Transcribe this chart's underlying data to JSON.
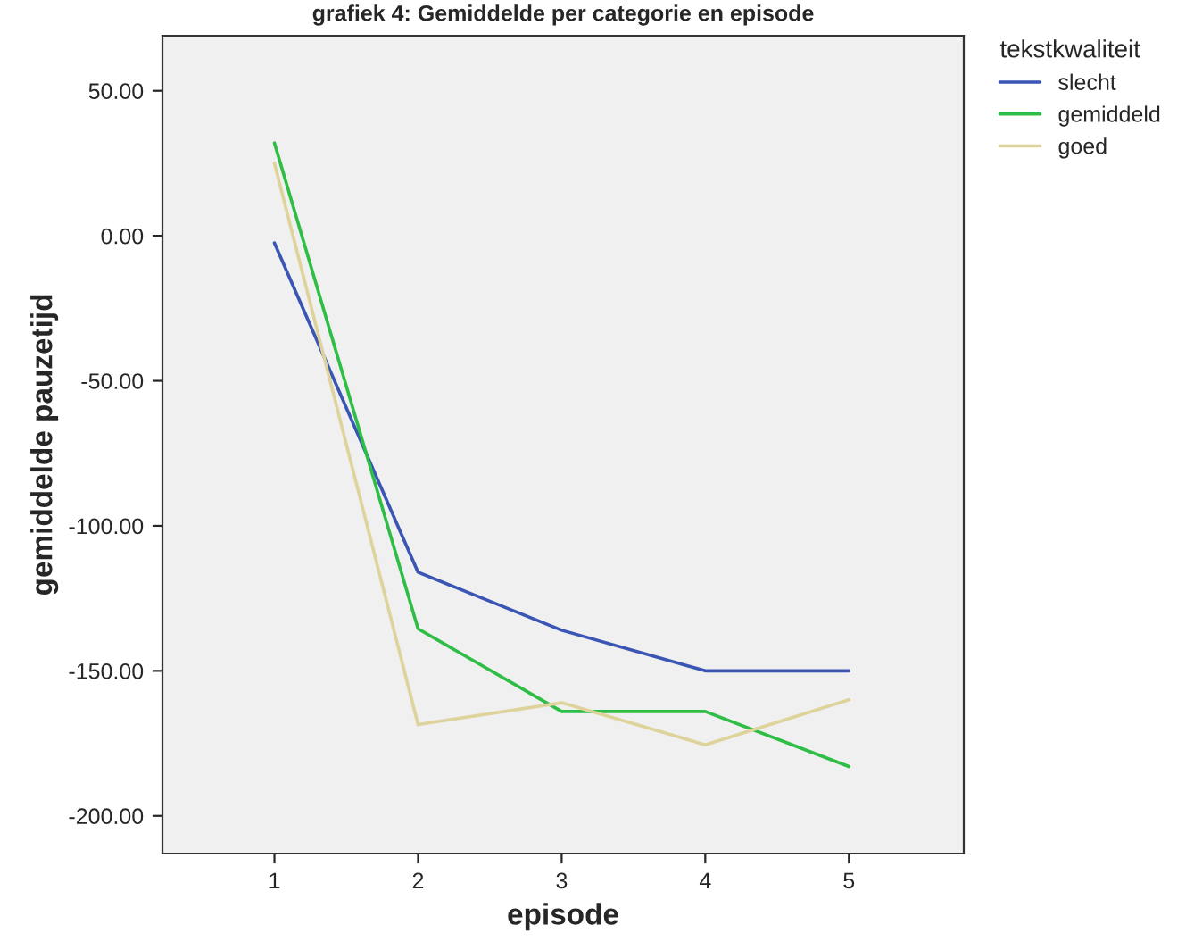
{
  "chart_data": {
    "type": "line",
    "title": "grafiek 4: Gemiddelde per categorie en episode",
    "xlabel": "episode",
    "ylabel": "gemiddelde pauzetijd",
    "legend_title": "tekstkwaliteit",
    "x": [
      1,
      2,
      3,
      4,
      5
    ],
    "series": [
      {
        "name": "slecht",
        "color": "#3a55b4",
        "values": [
          -2.5,
          -116,
          -136,
          -150,
          -150
        ]
      },
      {
        "name": "gemiddeld",
        "color": "#2ebd45",
        "values": [
          32,
          -135.5,
          -164,
          -164,
          -183
        ]
      },
      {
        "name": "goed",
        "color": "#ddd39b",
        "values": [
          25,
          -168.5,
          -161,
          -175.5,
          -160
        ]
      }
    ],
    "xlim": [
      0.22,
      5.8
    ],
    "xticks": [
      1,
      2,
      3,
      4,
      5
    ],
    "ylim": [
      -213,
      69
    ],
    "yticks": [
      {
        "value": -200,
        "label": "-200.00"
      },
      {
        "value": -150,
        "label": "-150.00"
      },
      {
        "value": -100,
        "label": "-100.00"
      },
      {
        "value": -50,
        "label": "-50.00"
      },
      {
        "value": 0,
        "label": "0.00"
      },
      {
        "value": 50,
        "label": "50.00"
      }
    ],
    "grid": false,
    "legend": "top right",
    "marker": "none",
    "line_style": "solid"
  }
}
